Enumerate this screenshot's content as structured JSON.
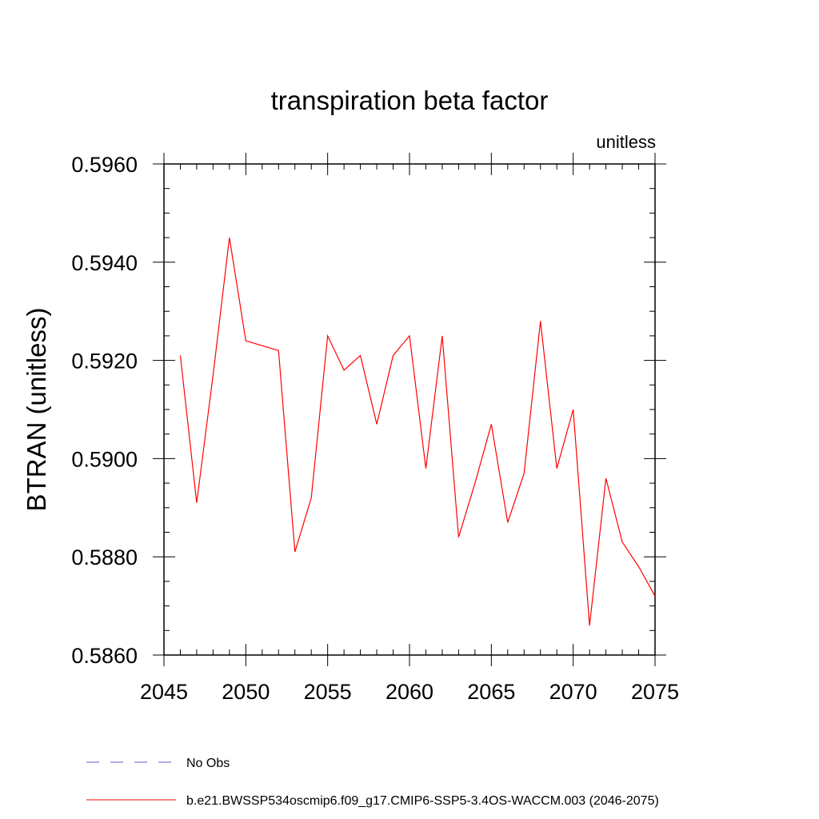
{
  "chart_data": {
    "type": "line",
    "title": "transpiration beta factor",
    "units_label": "unitless",
    "xlabel": "",
    "ylabel": "BTRAN  (unitless)",
    "xlim": [
      2045,
      2075
    ],
    "ylim": [
      0.586,
      0.596
    ],
    "x_ticks": [
      2045,
      2050,
      2055,
      2060,
      2065,
      2070,
      2075
    ],
    "x_tick_labels": [
      "2045",
      "2050",
      "2055",
      "2060",
      "2065",
      "2070",
      "2075"
    ],
    "y_ticks": [
      0.586,
      0.588,
      0.59,
      0.592,
      0.594,
      0.596
    ],
    "y_tick_labels": [
      "0.5860",
      "0.5880",
      "0.5900",
      "0.5920",
      "0.5940",
      "0.5960"
    ],
    "series": [
      {
        "name": "b.e21.BWSSP534oscmip6.f09_g17.CMIP6-SSP5-3.4OS-WACCM.003 (2046-2075)",
        "color": "#ff0000",
        "x": [
          2046,
          2047,
          2048,
          2049,
          2050,
          2051,
          2052,
          2053,
          2054,
          2055,
          2056,
          2057,
          2058,
          2059,
          2060,
          2061,
          2062,
          2063,
          2064,
          2065,
          2066,
          2067,
          2068,
          2069,
          2070,
          2071,
          2072,
          2073,
          2074,
          2075
        ],
        "values": [
          0.5921,
          0.5891,
          0.5917,
          0.5945,
          0.5924,
          0.5923,
          0.5922,
          0.5881,
          0.5892,
          0.5925,
          0.5918,
          0.5921,
          0.5907,
          0.5921,
          0.5925,
          0.5898,
          0.5925,
          0.5884,
          0.5895,
          0.5907,
          0.5887,
          0.5897,
          0.5928,
          0.5898,
          0.591,
          0.5866,
          0.5896,
          0.5883,
          0.5878,
          0.5872
        ]
      }
    ],
    "legend": [
      {
        "label": "No Obs",
        "color": "#6a5acd",
        "style": "dashed"
      },
      {
        "label": "b.e21.BWSSP534oscmip6.f09_g17.CMIP6-SSP5-3.4OS-WACCM.003 (2046-2075)",
        "color": "#ff0000",
        "style": "solid"
      }
    ]
  }
}
